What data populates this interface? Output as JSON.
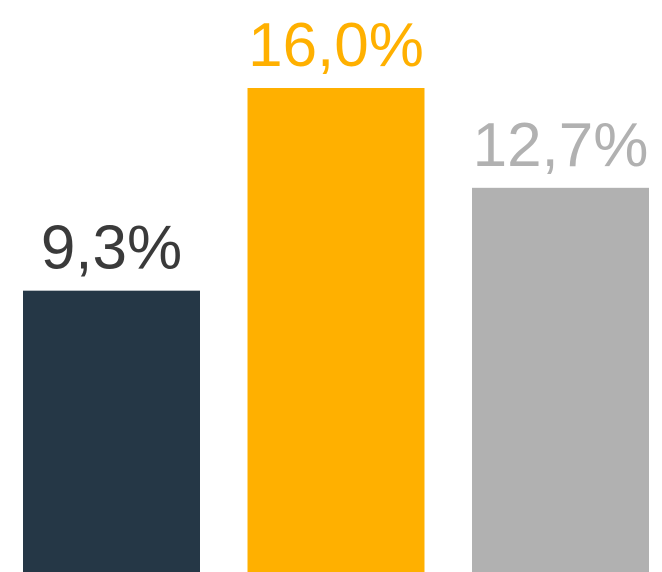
{
  "chart_data": {
    "type": "bar",
    "categories": [
      null,
      null,
      null
    ],
    "values": [
      9.3,
      16.0,
      12.7
    ],
    "value_labels": [
      "9,3%",
      "16,0%",
      "12,7%"
    ],
    "colors": [
      "#253746",
      "#ffb000",
      "#b1b1b1"
    ]
  }
}
